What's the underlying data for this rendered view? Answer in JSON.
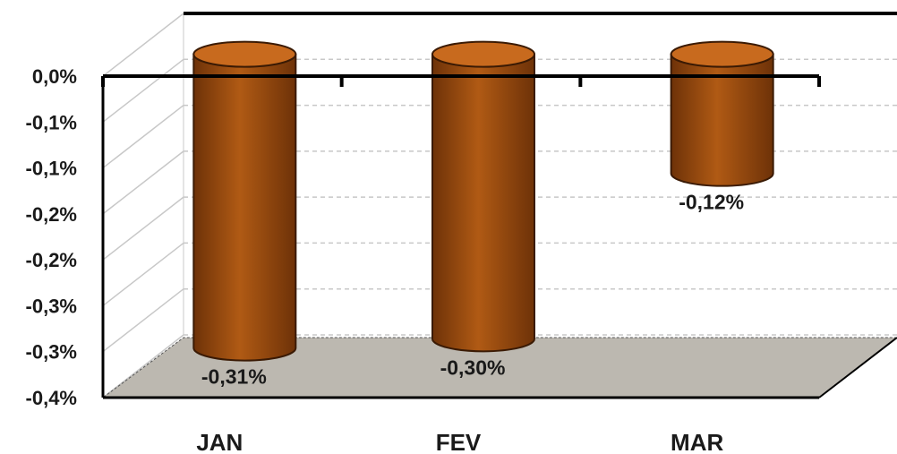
{
  "chart_data": {
    "type": "bar",
    "style": "3d-cylinder",
    "categories": [
      "JAN",
      "FEV",
      "MAR"
    ],
    "values": [
      -0.31,
      -0.3,
      -0.12
    ],
    "data_labels": [
      "-0,31%",
      "-0,30%",
      "-0,12%"
    ],
    "y_tick_labels": [
      "0,0%",
      "-0,1%",
      "-0,1%",
      "-0,2%",
      "-0,2%",
      "-0,3%",
      "-0,3%",
      "-0,4%"
    ],
    "ylim": [
      -0.35,
      0
    ],
    "grid": true,
    "legend": "none",
    "title": "",
    "xlabel": "",
    "ylabel": "",
    "colors": {
      "bar_light": "#b05a14",
      "bar_dark": "#6e3208",
      "bar_top": "#c86a1e",
      "floor": "#bcb8b0",
      "grid": "#c8c8c8",
      "axis": "#000000"
    }
  }
}
